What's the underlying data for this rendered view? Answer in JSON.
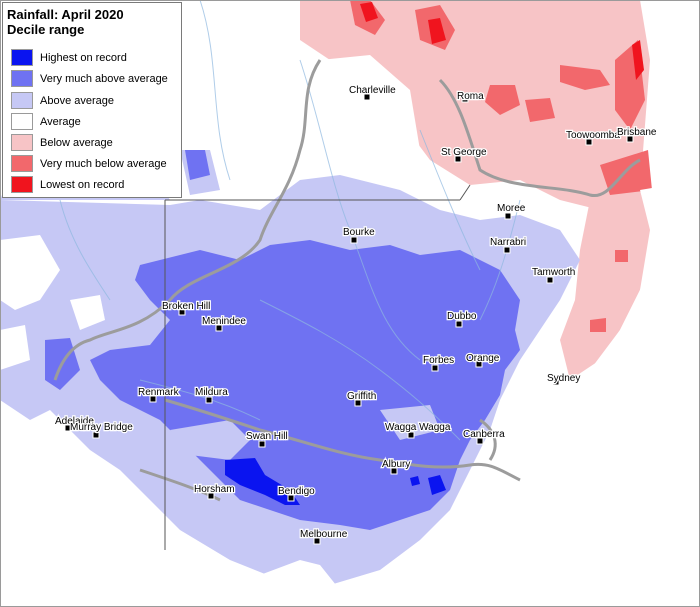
{
  "legend": {
    "title": "Rainfall: April 2020",
    "subtitle": "Decile range",
    "items": [
      {
        "label": "Highest on record",
        "color": "#0a14f0"
      },
      {
        "label": "Very much above average",
        "color": "#6f72f2"
      },
      {
        "label": "Above average",
        "color": "#c6c8f5"
      },
      {
        "label": "Average",
        "color": "#ffffff"
      },
      {
        "label": "Below average",
        "color": "#f7c4c6"
      },
      {
        "label": "Very much below average",
        "color": "#f2686c"
      },
      {
        "label": "Lowest on record",
        "color": "#f0141e"
      }
    ]
  },
  "places": [
    "Charleville",
    "Roma",
    "St George",
    "Toowoomba",
    "Brisbane",
    "Bourke",
    "Moree",
    "Narrabri",
    "Tamworth",
    "Broken Hill",
    "Menindee",
    "Dubbo",
    "Forbes",
    "Orange",
    "Renmark",
    "Mildura",
    "Griffith",
    "Sydney",
    "Adelaide",
    "Murray Bridge",
    "Swan Hill",
    "Wagga Wagga",
    "Canberra",
    "Albury",
    "Horsham",
    "Bendigo",
    "Melbourne"
  ]
}
